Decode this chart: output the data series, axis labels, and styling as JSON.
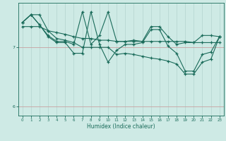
{
  "xlabel": "Humidex (Indice chaleur)",
  "bg_color": "#ceeae5",
  "line_color": "#1a6b5a",
  "grid_color_v": "#b8d8d2",
  "grid_color_h": "#c8a0a0",
  "ylim": [
    5.85,
    7.75
  ],
  "xlim": [
    -0.5,
    23.5
  ],
  "yticks": [
    6,
    7
  ],
  "xticks": [
    0,
    1,
    2,
    3,
    4,
    5,
    6,
    7,
    8,
    9,
    10,
    11,
    12,
    13,
    14,
    15,
    16,
    17,
    18,
    19,
    20,
    21,
    22,
    23
  ],
  "line_flat_x": [
    0,
    1,
    2,
    3,
    4,
    5,
    6,
    7,
    8,
    9,
    10,
    11,
    12,
    13,
    14,
    15,
    16,
    17,
    18,
    19,
    20,
    21,
    22,
    23
  ],
  "line_flat_y": [
    7.35,
    7.35,
    7.35,
    7.28,
    7.25,
    7.22,
    7.18,
    7.15,
    7.15,
    7.12,
    7.12,
    7.1,
    7.1,
    7.1,
    7.1,
    7.1,
    7.1,
    7.1,
    7.1,
    7.1,
    7.08,
    7.08,
    7.08,
    7.08
  ],
  "line_zigzag1_x": [
    0,
    1,
    2,
    3,
    4,
    5,
    6,
    7,
    8,
    9,
    10,
    11,
    12,
    13,
    14,
    15,
    16,
    17,
    18,
    19,
    20,
    21,
    22,
    23
  ],
  "line_zigzag1_y": [
    7.42,
    7.55,
    7.38,
    7.2,
    7.1,
    7.1,
    7.05,
    7.6,
    7.05,
    7.2,
    7.6,
    7.1,
    7.1,
    7.12,
    7.1,
    7.35,
    7.35,
    7.18,
    7.05,
    7.08,
    7.08,
    7.2,
    7.2,
    7.18
  ],
  "line_zigzag2_x": [
    0,
    1,
    2,
    3,
    4,
    5,
    6,
    7,
    8,
    9,
    10,
    11,
    12,
    13,
    14,
    15,
    16,
    17,
    18,
    19,
    20,
    21,
    22,
    23
  ],
  "line_zigzag2_y": [
    7.42,
    7.55,
    7.38,
    7.18,
    7.08,
    7.08,
    6.9,
    6.9,
    7.6,
    7.05,
    6.75,
    6.95,
    7.05,
    7.05,
    7.08,
    7.3,
    7.3,
    7.02,
    6.9,
    6.6,
    6.6,
    6.88,
    6.92,
    7.18
  ],
  "line_slope_x": [
    0,
    1,
    2,
    3,
    4,
    5,
    6,
    7,
    8,
    9,
    10,
    11,
    12,
    13,
    14,
    15,
    16,
    17,
    18,
    19,
    20,
    21,
    22,
    23
  ],
  "line_slope_y": [
    7.42,
    7.55,
    7.55,
    7.28,
    7.15,
    7.12,
    7.08,
    7.0,
    7.0,
    7.0,
    7.0,
    6.88,
    6.9,
    6.88,
    6.85,
    6.82,
    6.8,
    6.77,
    6.72,
    6.55,
    6.55,
    6.75,
    6.8,
    7.18
  ]
}
